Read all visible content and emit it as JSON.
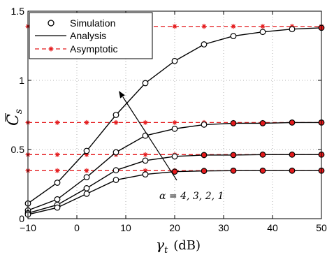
{
  "chart_data": {
    "type": "line",
    "xlabel_var": "γ",
    "xlabel_sub": "t",
    "xlabel_unit": "(dB)",
    "ylabel_var": "C",
    "ylabel_sub": "s",
    "xlim": [
      -10,
      50
    ],
    "ylim": [
      0,
      1.5
    ],
    "x_ticks": [
      -10,
      0,
      10,
      20,
      30,
      40,
      50
    ],
    "y_ticks": [
      0,
      0.5,
      1,
      1.5
    ],
    "x_tick_labels": [
      "−10",
      "0",
      "10",
      "20",
      "30",
      "40",
      "50"
    ],
    "y_tick_labels": [
      "0",
      "0.5",
      "1",
      "1.5"
    ],
    "grid": true,
    "legend_position": "top-left",
    "legend": [
      {
        "label": "Simulation",
        "style": "circle-marker"
      },
      {
        "label": "Analysis",
        "style": "solid-black"
      },
      {
        "label": "Asymptotic",
        "style": "dashed-red-star"
      }
    ],
    "x": [
      -10,
      -4,
      2,
      8,
      14,
      20,
      26,
      32,
      38,
      44,
      50
    ],
    "asymptote_x": [
      -10,
      -4,
      2,
      8,
      14,
      20,
      26,
      32,
      38,
      44,
      50
    ],
    "series": [
      {
        "values": [
          0.11,
          0.26,
          0.49,
          0.75,
          0.98,
          1.14,
          1.26,
          1.32,
          1.35,
          1.37,
          1.38
        ],
        "asymptote": 1.39
      },
      {
        "values": [
          0.06,
          0.14,
          0.3,
          0.48,
          0.6,
          0.65,
          0.68,
          0.69,
          0.69,
          0.695,
          0.695
        ],
        "asymptote": 0.695
      },
      {
        "values": [
          0.04,
          0.1,
          0.22,
          0.35,
          0.42,
          0.45,
          0.46,
          0.46,
          0.463,
          0.463,
          0.463
        ],
        "asymptote": 0.463
      },
      {
        "values": [
          0.03,
          0.08,
          0.18,
          0.28,
          0.32,
          0.34,
          0.345,
          0.347,
          0.347,
          0.347,
          0.347
        ],
        "asymptote": 0.347
      }
    ],
    "annotation": "α = 4, 3, 2, 1",
    "colors": {
      "analysis": "#000000",
      "asymptotic": "#e41a1c",
      "marker_fill": "#ffffff",
      "marker_fill_on_asymptote": "#e41a1c"
    }
  }
}
